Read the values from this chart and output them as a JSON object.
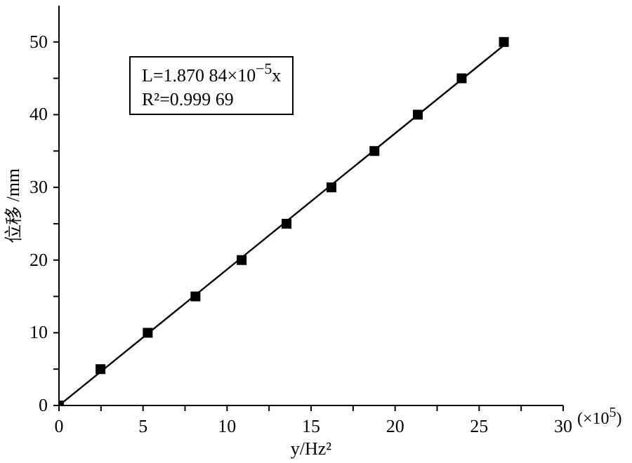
{
  "chart_data": {
    "type": "scatter",
    "xlabel": "y/Hz²",
    "ylabel": "位移 /mm",
    "xlim": [
      0,
      30
    ],
    "ylim": [
      0,
      55
    ],
    "xticks": [
      0,
      {
        "value": 2.5,
        "label": null
      },
      5,
      {
        "value": 7.5,
        "label": null
      },
      10,
      {
        "value": 12.5,
        "label": null
      },
      15,
      {
        "value": 17.5,
        "label": null
      },
      20,
      {
        "value": 22.5,
        "label": null
      },
      25,
      {
        "value": 27.5,
        "label": null
      },
      30
    ],
    "yticks": [
      0,
      {
        "value": 5,
        "label": null
      },
      10,
      {
        "value": 15,
        "label": null
      },
      20,
      {
        "value": 25,
        "label": null
      },
      30,
      {
        "value": 35,
        "label": null
      },
      40,
      {
        "value": 45,
        "label": null
      },
      50
    ],
    "annotations": [
      "L=1.870 84×10$^{−5}$x",
      "R²=0.999 69",
      "(×10$^{5}$)"
    ],
    "series": [
      {
        "marker": "square",
        "color": "#000000",
        "x": [
          0,
          2.47,
          5.28,
          8.12,
          10.87,
          13.54,
          16.21,
          18.77,
          21.35,
          23.96,
          26.47
        ],
        "values": [
          0,
          5,
          10,
          15,
          20,
          25,
          30,
          35,
          40,
          45,
          50
        ]
      },
      {
        "type": "line",
        "marker": "none",
        "color": "#000000",
        "x": [
          0,
          26.5
        ],
        "values": [
          0,
          49.6
        ]
      }
    ]
  }
}
